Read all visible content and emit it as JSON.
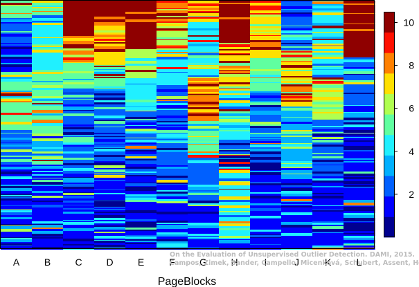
{
  "chart_data": {
    "type": "heatmap",
    "title": "",
    "xlabel": "PageBlocks",
    "ylabel": "",
    "columns": [
      "A",
      "B",
      "C",
      "D",
      "E",
      "F",
      "G",
      "H",
      "I",
      "J",
      "K",
      "L"
    ],
    "colorbar": {
      "ticks": [
        2,
        4,
        6,
        8,
        10
      ],
      "range": [
        0,
        10.5
      ],
      "colors": [
        "#00008f",
        "#0000ff",
        "#0060ff",
        "#00b0ff",
        "#20f0ff",
        "#60ffa0",
        "#b0ff50",
        "#ffe000",
        "#ff8000",
        "#ff1000",
        "#8f0000"
      ]
    },
    "column_profiles": [
      {
        "column": "A",
        "top_band": 0,
        "bands": [
          [
            0,
            25,
            5
          ],
          [
            25,
            60,
            2
          ],
          [
            60,
            100,
            1
          ],
          [
            100,
            115,
            4
          ],
          [
            115,
            185,
            5
          ],
          [
            185,
            235,
            2
          ],
          [
            235,
            360,
            1
          ]
        ]
      },
      {
        "column": "B",
        "top_band": 0,
        "bands": [
          [
            0,
            20,
            5
          ],
          [
            20,
            60,
            4
          ],
          [
            60,
            100,
            4
          ],
          [
            100,
            125,
            5
          ],
          [
            125,
            190,
            5
          ],
          [
            190,
            235,
            3
          ],
          [
            235,
            360,
            1
          ]
        ]
      },
      {
        "column": "C",
        "top_band": 50,
        "bands": [
          [
            0,
            50,
            10
          ],
          [
            50,
            90,
            8
          ],
          [
            90,
            125,
            5
          ],
          [
            125,
            160,
            2
          ],
          [
            160,
            245,
            2
          ],
          [
            245,
            360,
            1
          ]
        ]
      },
      {
        "column": "D",
        "top_band": 30,
        "bands": [
          [
            0,
            30,
            10
          ],
          [
            30,
            90,
            7
          ],
          [
            90,
            130,
            5
          ],
          [
            130,
            250,
            2
          ],
          [
            250,
            360,
            1
          ]
        ]
      },
      {
        "column": "E",
        "top_band": 70,
        "bands": [
          [
            0,
            70,
            10
          ],
          [
            70,
            110,
            6
          ],
          [
            110,
            160,
            4
          ],
          [
            160,
            250,
            2
          ],
          [
            250,
            360,
            1
          ]
        ]
      },
      {
        "column": "F",
        "top_band": 20,
        "bands": [
          [
            0,
            20,
            8
          ],
          [
            20,
            70,
            6
          ],
          [
            70,
            120,
            4
          ],
          [
            120,
            260,
            2
          ],
          [
            260,
            360,
            1
          ]
        ]
      },
      {
        "column": "G",
        "top_band": 0,
        "bands": [
          [
            0,
            30,
            7
          ],
          [
            30,
            110,
            4
          ],
          [
            110,
            165,
            8
          ],
          [
            165,
            225,
            5
          ],
          [
            225,
            290,
            2
          ],
          [
            290,
            360,
            1
          ]
        ]
      },
      {
        "column": "H",
        "top_band": 60,
        "bands": [
          [
            0,
            60,
            10
          ],
          [
            60,
            130,
            7
          ],
          [
            130,
            200,
            4
          ],
          [
            200,
            240,
            2
          ],
          [
            240,
            345,
            4
          ],
          [
            345,
            360,
            1
          ]
        ]
      },
      {
        "column": "I",
        "top_band": 20,
        "bands": [
          [
            0,
            20,
            9
          ],
          [
            20,
            80,
            7
          ],
          [
            80,
            130,
            5
          ],
          [
            130,
            240,
            2
          ],
          [
            240,
            360,
            1
          ]
        ]
      },
      {
        "column": "J",
        "top_band": 0,
        "bands": [
          [
            0,
            70,
            2
          ],
          [
            70,
            150,
            7
          ],
          [
            150,
            260,
            3
          ],
          [
            260,
            360,
            1
          ]
        ]
      },
      {
        "column": "K",
        "top_band": 0,
        "bands": [
          [
            0,
            40,
            4
          ],
          [
            40,
            110,
            4
          ],
          [
            110,
            170,
            6
          ],
          [
            170,
            250,
            2
          ],
          [
            250,
            360,
            1
          ]
        ]
      },
      {
        "column": "L",
        "top_band": 80,
        "bands": [
          [
            0,
            80,
            10
          ],
          [
            80,
            150,
            2
          ],
          [
            150,
            225,
            1
          ],
          [
            225,
            360,
            1
          ]
        ]
      }
    ]
  },
  "credit": {
    "line1": "On the Evaluation of Unsupervised Outlier Detection. DAMI, 2015.",
    "line2": "Campos, Zimek, Sander, Campello, Micenková, Schubert, Assent, Houle"
  }
}
